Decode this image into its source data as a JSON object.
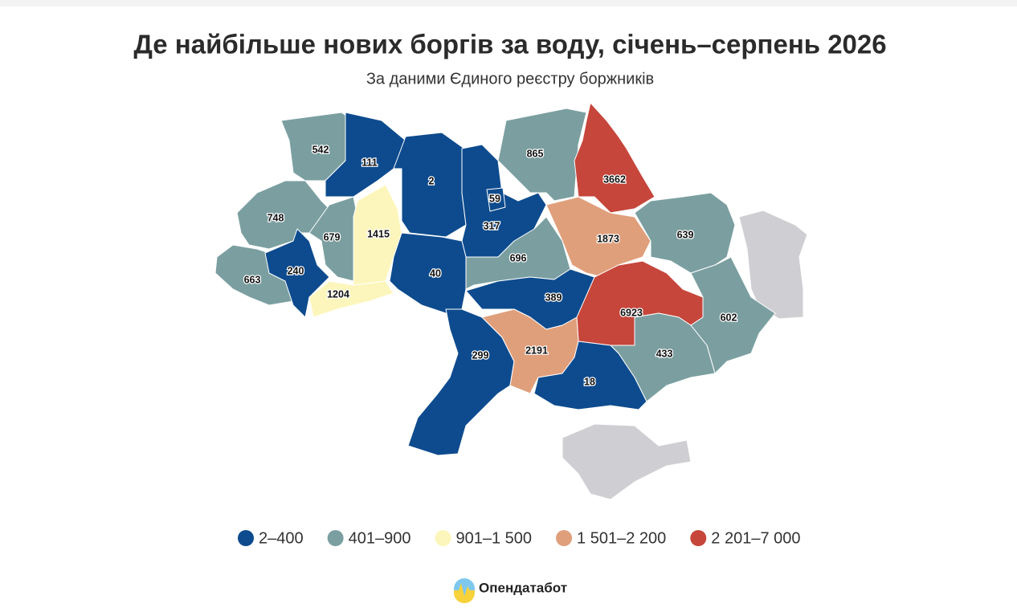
{
  "map": {
    "title": "Де найбільше нових боргів за воду, січень–серпень 2026",
    "subtitle": "За даними Єдиного реєстру боржників",
    "legend": [
      {
        "label": "2–400",
        "color": "#0d4b8e"
      },
      {
        "label": "401–900",
        "color": "#7b9fa1"
      },
      {
        "label": "901–1 500",
        "color": "#fdf6bc"
      },
      {
        "label": "1 501–2 200",
        "color": "#e09f7b"
      },
      {
        "label": "2 201–7 000",
        "color": "#c6463b"
      }
    ],
    "regions": [
      {
        "value": 542,
        "color": "#7b9fa1"
      },
      {
        "value": 111,
        "color": "#0d4b8e"
      },
      {
        "value": 2,
        "color": "#0d4b8e"
      },
      {
        "value": 865,
        "color": "#7b9fa1"
      },
      {
        "value": 3662,
        "color": "#c6463b"
      },
      {
        "value": 748,
        "color": "#7b9fa1"
      },
      {
        "value": 679,
        "color": "#7b9fa1"
      },
      {
        "value": 1415,
        "color": "#fdf6bc"
      },
      {
        "value": 317,
        "color": "#0d4b8e"
      },
      {
        "value": 59,
        "color": "#0d4b8e"
      },
      {
        "value": 1873,
        "color": "#e09f7b"
      },
      {
        "value": 639,
        "color": "#7b9fa1"
      },
      {
        "value": 663,
        "color": "#7b9fa1"
      },
      {
        "value": 240,
        "color": "#0d4b8e"
      },
      {
        "value": 1204,
        "color": "#fdf6bc"
      },
      {
        "value": 40,
        "color": "#0d4b8e"
      },
      {
        "value": 696,
        "color": "#7b9fa1"
      },
      {
        "value": 389,
        "color": "#0d4b8e"
      },
      {
        "value": 6923,
        "color": "#c6463b"
      },
      {
        "value": 602,
        "color": "#7b9fa1"
      },
      {
        "value": 299,
        "color": "#0d4b8e"
      },
      {
        "value": 2191,
        "color": "#e09f7b"
      },
      {
        "value": 433,
        "color": "#7b9fa1"
      },
      {
        "value": 18,
        "color": "#0d4b8e"
      }
    ],
    "source": "Опендатабот"
  }
}
